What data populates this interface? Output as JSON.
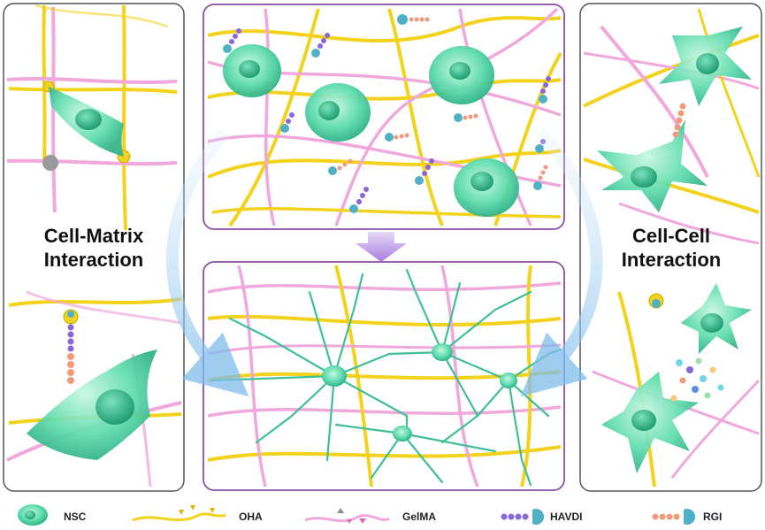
{
  "left_panel": {
    "title_line1": "Cell-Matrix",
    "title_line2": "Interaction"
  },
  "right_panel": {
    "title_line1": "Cell-Cell",
    "title_line2": "Interaction"
  },
  "legend": [
    {
      "key": "nsc",
      "label": "NSC"
    },
    {
      "key": "oha",
      "label": "OHA"
    },
    {
      "key": "gelma",
      "label": "GelMA"
    },
    {
      "key": "havdi",
      "label": "HAVDI"
    },
    {
      "key": "rgi",
      "label": "RGI"
    }
  ],
  "colors": {
    "oha_fiber": "#f2d21c",
    "gelma_fiber": "#f0a8dc",
    "cell": "#5fdcae",
    "cell_dark": "#2aa880",
    "havdi": "#8a66d8",
    "rgi": "#f29a7a",
    "panel_border_left": "#555555",
    "panel_border_center": "#8a4fa8",
    "arrow": "#8fc8ee"
  }
}
